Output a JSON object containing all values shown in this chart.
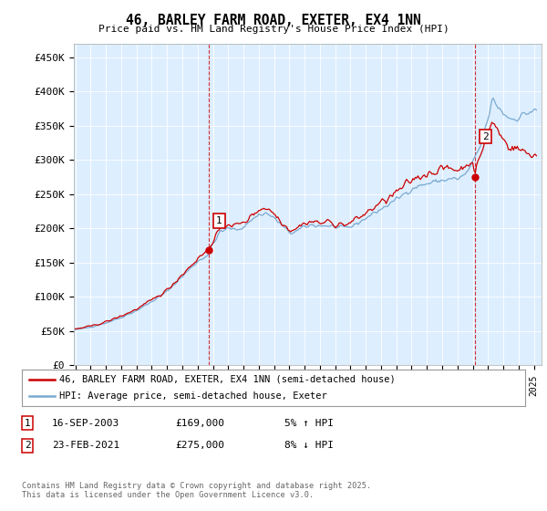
{
  "title": "46, BARLEY FARM ROAD, EXETER, EX4 1NN",
  "subtitle": "Price paid vs. HM Land Registry's House Price Index (HPI)",
  "ylabel_ticks": [
    "£0",
    "£50K",
    "£100K",
    "£150K",
    "£200K",
    "£250K",
    "£300K",
    "£350K",
    "£400K",
    "£450K"
  ],
  "ytick_values": [
    0,
    50000,
    100000,
    150000,
    200000,
    250000,
    300000,
    350000,
    400000,
    450000
  ],
  "ylim": [
    0,
    470000
  ],
  "xlim_start": 1994.9,
  "xlim_end": 2025.5,
  "legend_line1": "46, BARLEY FARM ROAD, EXETER, EX4 1NN (semi-detached house)",
  "legend_line2": "HPI: Average price, semi-detached house, Exeter",
  "line1_color": "#cc0000",
  "line2_color": "#7aaad0",
  "vline_color": "#cc0000",
  "purchase1_x": 2003.71,
  "purchase1_y": 169000,
  "purchase1_label": "1",
  "purchase2_x": 2021.13,
  "purchase2_y": 275000,
  "purchase2_label": "2",
  "table_row1": [
    "1",
    "16-SEP-2003",
    "£169,000",
    "5% ↑ HPI"
  ],
  "table_row2": [
    "2",
    "23-FEB-2021",
    "£275,000",
    "8% ↓ HPI"
  ],
  "footnote": "Contains HM Land Registry data © Crown copyright and database right 2025.\nThis data is licensed under the Open Government Licence v3.0.",
  "background_color": "#ffffff",
  "chart_bg_color": "#ddeeff",
  "grid_color": "#ffffff"
}
